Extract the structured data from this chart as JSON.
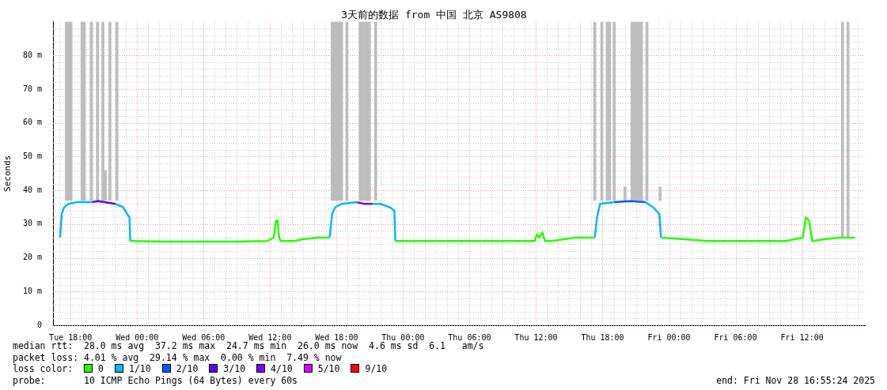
{
  "chart_data": {
    "type": "line",
    "title": "3天前的数据 from 中国 北京 AS9808",
    "ylabel": "Seconds",
    "legend_title": "loss color:",
    "legend": "bottom",
    "grid": true,
    "annotations": [
      "median rtt:  28.0 ms avg  37.2 ms max  24.7 ms min  26.0 ms now  4.6 ms sd  6.1   am/s",
      "packet loss: 4.01 % avg  29.14 % max  0.00 % min  7.49 % now",
      "probe:       10 ICMP Echo Pings (64 Bytes) every 60s",
      "end: Fri Nov 28 16:55:24 2025"
    ],
    "xlim": [
      "2025-11-25T16:55",
      "2025-11-28T17:10"
    ],
    "xticks": [
      {
        "value": "2025-11-25T17:00",
        "label": null
      },
      {
        "value": "2025-11-25T18:00",
        "label": "Tue 18:00"
      },
      {
        "value": "2025-11-25T19:00",
        "label": null
      },
      {
        "value": "2025-11-25T20:00",
        "label": null
      },
      {
        "value": "2025-11-25T21:00",
        "label": null
      },
      {
        "value": "2025-11-25T22:00",
        "label": null
      },
      {
        "value": "2025-11-25T23:00",
        "label": null
      },
      {
        "value": "2025-11-26T00:00",
        "label": "Wed 00:00"
      },
      {
        "value": "2025-11-26T01:00",
        "label": null
      },
      {
        "value": "2025-11-26T02:00",
        "label": null
      },
      {
        "value": "2025-11-26T03:00",
        "label": null
      },
      {
        "value": "2025-11-26T04:00",
        "label": null
      },
      {
        "value": "2025-11-26T05:00",
        "label": null
      },
      {
        "value": "2025-11-26T06:00",
        "label": "Wed 06:00"
      },
      {
        "value": "2025-11-26T07:00",
        "label": null
      },
      {
        "value": "2025-11-26T08:00",
        "label": null
      },
      {
        "value": "2025-11-26T09:00",
        "label": null
      },
      {
        "value": "2025-11-26T10:00",
        "label": null
      },
      {
        "value": "2025-11-26T11:00",
        "label": null
      },
      {
        "value": "2025-11-26T12:00",
        "label": "Wed 12:00"
      },
      {
        "value": "2025-11-26T13:00",
        "label": null
      },
      {
        "value": "2025-11-26T14:00",
        "label": null
      },
      {
        "value": "2025-11-26T15:00",
        "label": null
      },
      {
        "value": "2025-11-26T16:00",
        "label": null
      },
      {
        "value": "2025-11-26T17:00",
        "label": null
      },
      {
        "value": "2025-11-26T18:00",
        "label": "Wed 18:00"
      },
      {
        "value": "2025-11-26T19:00",
        "label": null
      },
      {
        "value": "2025-11-26T20:00",
        "label": null
      },
      {
        "value": "2025-11-26T21:00",
        "label": null
      },
      {
        "value": "2025-11-26T22:00",
        "label": null
      },
      {
        "value": "2025-11-26T23:00",
        "label": null
      },
      {
        "value": "2025-11-27T00:00",
        "label": "Thu 00:00"
      },
      {
        "value": "2025-11-27T01:00",
        "label": null
      },
      {
        "value": "2025-11-27T02:00",
        "label": null
      },
      {
        "value": "2025-11-27T03:00",
        "label": null
      },
      {
        "value": "2025-11-27T04:00",
        "label": null
      },
      {
        "value": "2025-11-27T05:00",
        "label": null
      },
      {
        "value": "2025-11-27T06:00",
        "label": "Thu 06:00"
      },
      {
        "value": "2025-11-27T07:00",
        "label": null
      },
      {
        "value": "2025-11-27T08:00",
        "label": null
      },
      {
        "value": "2025-11-27T09:00",
        "label": null
      },
      {
        "value": "2025-11-27T10:00",
        "label": null
      },
      {
        "value": "2025-11-27T11:00",
        "label": null
      },
      {
        "value": "2025-11-27T12:00",
        "label": "Thu 12:00"
      },
      {
        "value": "2025-11-27T13:00",
        "label": null
      },
      {
        "value": "2025-11-27T14:00",
        "label": null
      },
      {
        "value": "2025-11-27T15:00",
        "label": null
      },
      {
        "value": "2025-11-27T16:00",
        "label": null
      },
      {
        "value": "2025-11-27T17:00",
        "label": null
      },
      {
        "value": "2025-11-27T18:00",
        "label": "Thu 18:00"
      },
      {
        "value": "2025-11-27T19:00",
        "label": null
      },
      {
        "value": "2025-11-27T20:00",
        "label": null
      },
      {
        "value": "2025-11-27T21:00",
        "label": null
      },
      {
        "value": "2025-11-27T22:00",
        "label": null
      },
      {
        "value": "2025-11-27T23:00",
        "label": null
      },
      {
        "value": "2025-11-28T00:00",
        "label": "Fri 00:00"
      },
      {
        "value": "2025-11-28T01:00",
        "label": null
      },
      {
        "value": "2025-11-28T02:00",
        "label": null
      },
      {
        "value": "2025-11-28T03:00",
        "label": null
      },
      {
        "value": "2025-11-28T04:00",
        "label": null
      },
      {
        "value": "2025-11-28T05:00",
        "label": null
      },
      {
        "value": "2025-11-28T06:00",
        "label": "Fri 06:00"
      },
      {
        "value": "2025-11-28T07:00",
        "label": null
      },
      {
        "value": "2025-11-28T08:00",
        "label": null
      },
      {
        "value": "2025-11-28T09:00",
        "label": null
      },
      {
        "value": "2025-11-28T10:00",
        "label": null
      },
      {
        "value": "2025-11-28T11:00",
        "label": null
      },
      {
        "value": "2025-11-28T12:00",
        "label": "Fri 12:00"
      },
      {
        "value": "2025-11-28T13:00",
        "label": null
      },
      {
        "value": "2025-11-28T14:00",
        "label": null
      },
      {
        "value": "2025-11-28T15:00",
        "label": null
      },
      {
        "value": "2025-11-28T16:00",
        "label": null
      },
      {
        "value": "2025-11-28T17:00",
        "label": null
      }
    ],
    "ylim": [
      0,
      90
    ],
    "yticks": [
      0,
      {
        "value": 2,
        "label": null
      },
      {
        "value": 4,
        "label": null
      },
      {
        "value": 6,
        "label": null
      },
      {
        "value": 8,
        "label": null
      },
      {
        "value": 10,
        "label": "10 m"
      },
      {
        "value": 12,
        "label": null
      },
      {
        "value": 14,
        "label": null
      },
      {
        "value": 16,
        "label": null
      },
      {
        "value": 18,
        "label": null
      },
      {
        "value": 20,
        "label": "20 m"
      },
      {
        "value": 22,
        "label": null
      },
      {
        "value": 24,
        "label": null
      },
      {
        "value": 26,
        "label": null
      },
      {
        "value": 28,
        "label": null
      },
      {
        "value": 30,
        "label": "30 m"
      },
      {
        "value": 32,
        "label": null
      },
      {
        "value": 34,
        "label": null
      },
      {
        "value": 36,
        "label": null
      },
      {
        "value": 38,
        "label": null
      },
      {
        "value": 40,
        "label": "40 m"
      },
      {
        "value": 42,
        "label": null
      },
      {
        "value": 44,
        "label": null
      },
      {
        "value": 46,
        "label": null
      },
      {
        "value": 48,
        "label": null
      },
      {
        "value": 50,
        "label": "50 m"
      },
      {
        "value": 52,
        "label": null
      },
      {
        "value": 54,
        "label": null
      },
      {
        "value": 56,
        "label": null
      },
      {
        "value": 58,
        "label": null
      },
      {
        "value": 60,
        "label": "60 m"
      },
      {
        "value": 62,
        "label": null
      },
      {
        "value": 64,
        "label": null
      },
      {
        "value": 66,
        "label": null
      },
      {
        "value": 68,
        "label": null
      },
      {
        "value": 70,
        "label": "70 m"
      },
      {
        "value": 72,
        "label": null
      },
      {
        "value": 74,
        "label": null
      },
      {
        "value": 76,
        "label": null
      },
      {
        "value": 78,
        "label": null
      },
      {
        "value": 80,
        "label": "80 m"
      },
      {
        "value": 82,
        "label": null
      },
      {
        "value": 84,
        "label": null
      },
      {
        "value": 86,
        "label": null
      },
      {
        "value": 88,
        "label": null
      }
    ],
    "series": [
      {
        "type": "bar",
        "color": "#bdbdbd",
        "x": [
          "2025-11-25T17:37",
          "2025-11-25T17:50",
          "2025-11-25T18:02",
          "2025-11-25T19:02",
          "2025-11-25T19:14",
          "2025-11-25T19:52",
          "2025-11-25T20:26",
          "2025-11-25T20:55",
          "2025-11-25T21:08",
          "2025-11-25T21:33",
          "2025-11-25T22:11",
          "2025-11-26T17:36",
          "2025-11-26T17:49",
          "2025-11-26T18:01",
          "2025-11-26T18:14",
          "2025-11-26T18:27",
          "2025-11-26T18:56",
          "2025-11-26T20:08",
          "2025-11-26T20:20",
          "2025-11-26T20:33",
          "2025-11-26T20:46",
          "2025-11-26T20:58",
          "2025-11-26T21:32",
          "2025-11-27T17:18",
          "2025-11-27T17:56",
          "2025-11-27T18:25",
          "2025-11-27T18:38",
          "2025-11-27T19:03",
          "2025-11-27T20:02",
          "2025-11-27T20:40",
          "2025-11-27T20:53",
          "2025-11-27T21:05",
          "2025-11-27T21:18",
          "2025-11-27T21:31",
          "2025-11-27T22:00",
          "2025-11-27T23:12",
          "2025-11-28T15:39",
          "2025-11-28T16:09"
        ],
        "base": [
          37,
          37,
          37,
          37,
          37,
          37,
          37,
          37,
          37,
          37,
          37,
          37,
          37,
          37,
          37,
          37,
          37,
          37,
          37,
          37,
          37,
          37,
          37,
          37,
          37,
          37,
          37,
          37,
          37,
          37,
          37,
          37,
          37,
          37,
          37,
          37,
          26,
          26
        ],
        "values": [
          53,
          53,
          53,
          53,
          53,
          53,
          53,
          53,
          9,
          53,
          53,
          53,
          53,
          53,
          53,
          53,
          53,
          53,
          53,
          53,
          53,
          53,
          53,
          53,
          53,
          53,
          53,
          53,
          4,
          53,
          53,
          53,
          53,
          53,
          53,
          4,
          64,
          64
        ]
      },
      {
        "name": "0",
        "color": "#26ff00",
        "x": [
          "2025-11-25T23:23",
          "2025-11-26T02:16",
          "2025-11-26T05:47",
          "2025-11-26T09:18",
          "2025-11-26T11:46",
          "2025-11-26T12:19",
          "2025-11-26T12:32",
          "2025-11-26T12:41",
          "2025-11-26T12:49",
          "2025-11-26T12:57",
          "2025-11-26T14:13",
          "2025-11-26T14:56",
          "2025-11-26T16:20",
          "2025-11-26T17:23",
          "2025-11-26T20:00",
          "2025-11-26T23:18",
          "2025-11-27T00:46",
          "2025-11-27T06:24",
          "2025-11-27T11:53",
          "2025-11-27T12:05",
          "2025-11-27T12:18",
          "2025-11-27T12:35",
          "2025-11-27T12:48",
          "2025-11-27T13:26",
          "2025-11-27T15:32",
          "2025-11-27T17:18",
          "2025-11-27T20:00",
          "2025-11-27T23:16",
          "2025-11-28T01:23",
          "2025-11-28T03:29",
          "2025-11-28T10:31",
          "2025-11-28T12:04",
          "2025-11-28T12:21",
          "2025-11-28T12:38",
          "2025-11-28T12:55",
          "2025-11-28T14:02",
          "2025-11-28T15:27",
          "2025-11-28T16:47"
        ],
        "values": [
          25,
          24.8,
          24.8,
          24.8,
          25,
          26,
          31,
          31,
          26,
          25,
          25,
          25.5,
          26,
          26,
          null,
          25,
          25,
          25,
          25,
          27,
          26,
          27.5,
          25,
          25,
          26,
          26,
          null,
          26,
          25.5,
          25,
          25,
          26,
          32,
          31,
          25,
          25.5,
          26,
          26
        ]
      },
      {
        "name": "1/10",
        "color": "#00b8ff",
        "x": [
          "2025-11-25T17:03",
          "2025-11-25T17:12",
          "2025-11-25T17:25",
          "2025-11-25T17:50",
          "2025-11-25T18:32",
          "2025-11-25T19:56",
          "2025-11-25T21:00",
          "2025-11-25T22:03",
          "2025-11-25T22:45",
          "2025-11-25T23:06",
          "2025-11-25T23:19",
          "2025-11-25T23:23",
          "2025-11-26T12:00",
          "2025-11-26T17:23",
          "2025-11-26T17:36",
          "2025-11-26T17:53",
          "2025-11-26T18:27",
          "2025-11-26T19:51",
          "2025-11-26T20:30",
          "2025-11-26T21:15",
          "2025-11-26T21:57",
          "2025-11-26T22:48",
          "2025-11-26T23:13",
          "2025-11-26T23:18",
          "2025-11-27T12:00",
          "2025-11-27T17:18",
          "2025-11-27T17:30",
          "2025-11-27T17:47",
          "2025-11-27T19:03",
          "2025-11-27T20:28",
          "2025-11-27T21:52",
          "2025-11-27T22:34",
          "2025-11-27T23:08",
          "2025-11-27T23:16"
        ],
        "values": [
          26,
          33,
          35,
          36,
          36.5,
          36.5,
          null,
          36,
          35,
          33,
          32,
          25,
          null,
          26,
          33,
          35,
          36,
          36.5,
          null,
          36,
          36,
          35,
          34,
          25,
          null,
          26,
          32,
          36,
          36.5,
          null,
          36.5,
          35,
          33,
          26
        ]
      },
      {
        "name": "2/10",
        "color": "#0059ff",
        "x": [
          "2025-11-27T19:03",
          "2025-11-27T20:28",
          "2025-11-27T21:52"
        ],
        "values": [
          36.5,
          36.8,
          36.5
        ]
      },
      {
        "name": "3/10",
        "color": "#5e00ff",
        "x": [
          "2025-11-25T19:56",
          "2025-11-25T20:30",
          "2025-11-25T22:03"
        ],
        "values": [
          36.5,
          36.8,
          36
        ]
      },
      {
        "name": "4/10",
        "color": "#7e00ff",
        "x": [
          "2025-11-26T19:51",
          "2025-11-26T20:30",
          "2025-11-26T21:15"
        ],
        "values": [
          36.5,
          36,
          36
        ]
      },
      {
        "name": "5/10",
        "color": "#dd00ff"
      },
      {
        "name": "9/10",
        "color": "#ff0000"
      }
    ]
  }
}
